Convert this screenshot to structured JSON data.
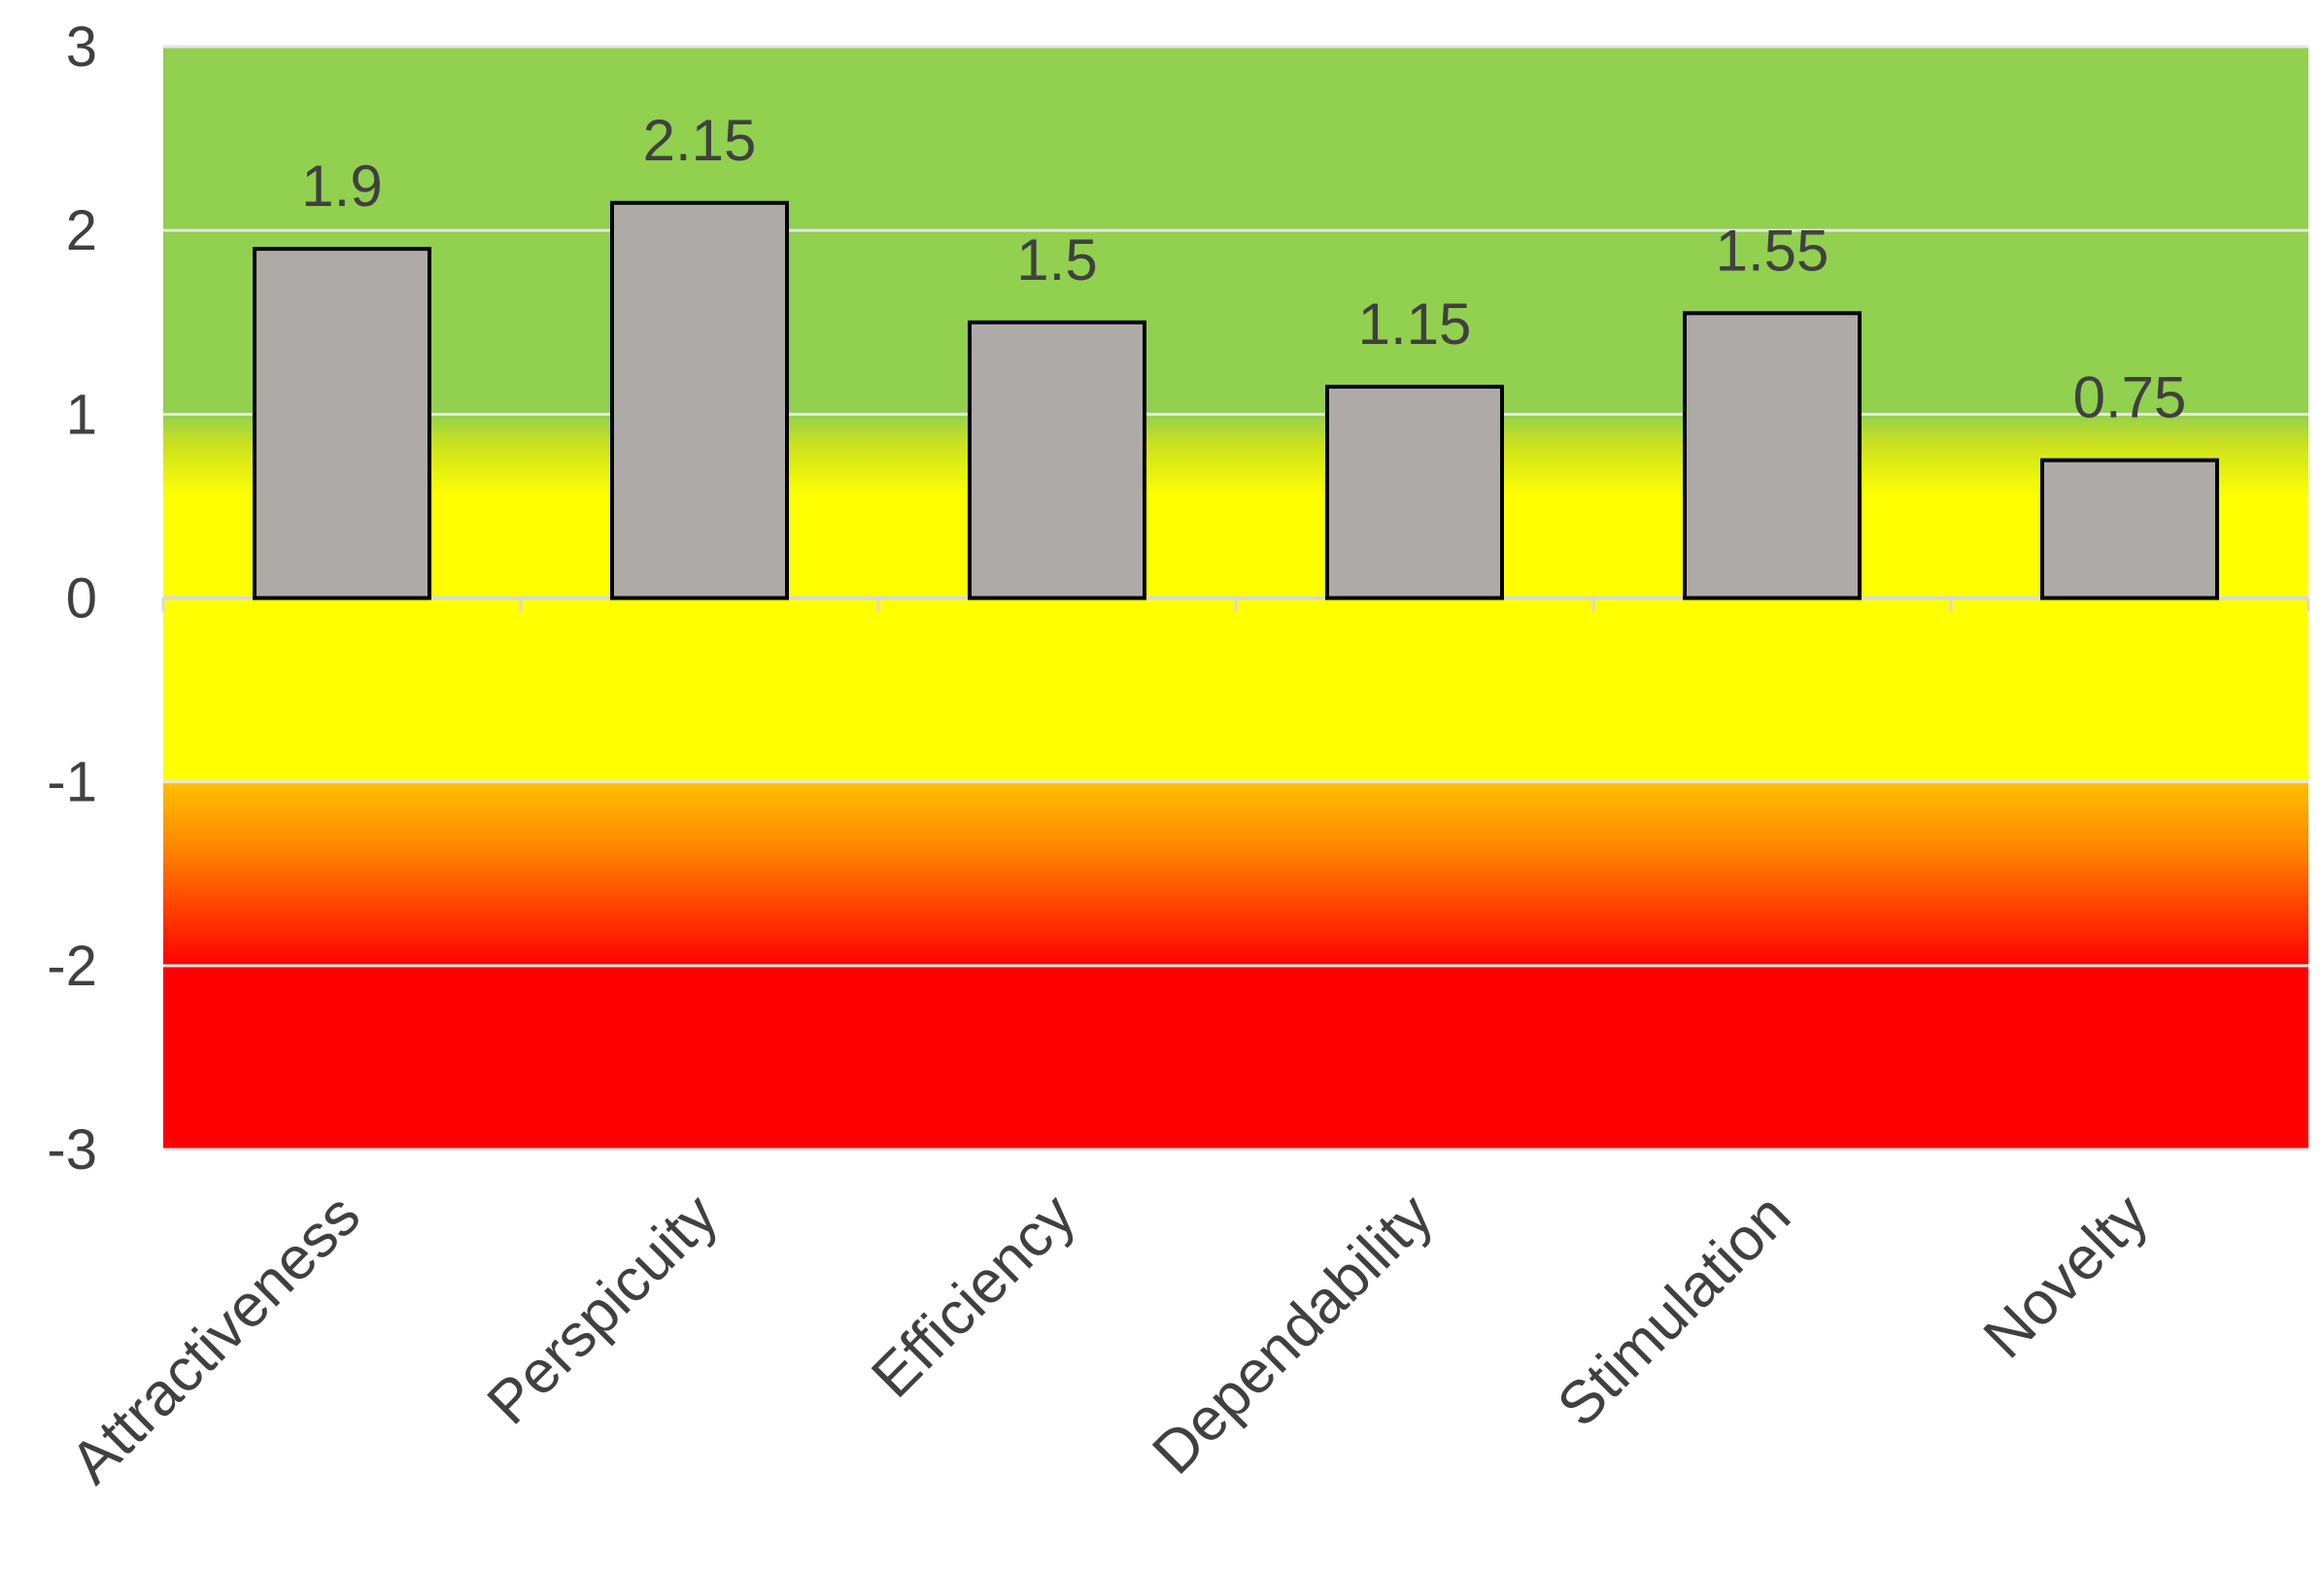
{
  "chart_data": {
    "type": "bar",
    "categories": [
      "Attractiveness",
      "Perspicuity",
      "Efficiency",
      "Dependability",
      "Stimulation",
      "Novelty"
    ],
    "values": [
      1.9,
      2.15,
      1.5,
      1.15,
      1.55,
      0.75
    ],
    "data_labels": [
      "1.9",
      "2.15",
      "1.5",
      "1.15",
      "1.55",
      "0.75"
    ],
    "y_ticks": [
      "3",
      "2",
      "1",
      "0",
      "-1",
      "-2",
      "-3"
    ],
    "y_tick_values": [
      3,
      2,
      1,
      0,
      -1,
      -2,
      -3
    ],
    "ylim": [
      -3,
      3
    ],
    "grid": true,
    "legend": "none",
    "bar_color": "#aeaaa8",
    "bar_outline_color": "#000000",
    "background_bands": [
      {
        "from": 1,
        "to": 3,
        "color": "#92d050"
      },
      {
        "from": 0,
        "to": 1,
        "color_top": "#92d050",
        "color_bottom": "#ffff00"
      },
      {
        "from": -1,
        "to": 0,
        "color": "#ffff00"
      },
      {
        "from": -2,
        "to": -1,
        "color_top": "#ffc000",
        "color_bottom": "#ff0000"
      },
      {
        "from": -3,
        "to": -2,
        "color": "#ff0000"
      }
    ]
  }
}
